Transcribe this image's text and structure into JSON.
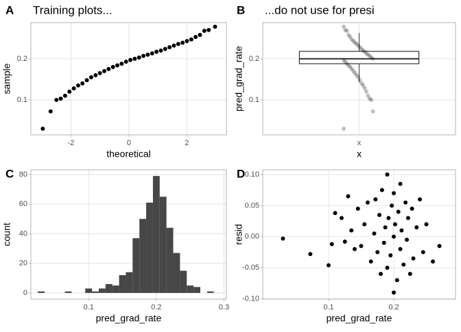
{
  "chart_data": [
    {
      "type": "scatter",
      "tag": "A",
      "title": "Training plots...",
      "xlabel": "theoretical",
      "ylabel": "sample",
      "color": "#000000",
      "x": [
        -2.97,
        -2.7,
        -2.5,
        -2.35,
        -2.2,
        -2.05,
        -1.9,
        -1.75,
        -1.6,
        -1.45,
        -1.3,
        -1.15,
        -1.0,
        -0.85,
        -0.7,
        -0.55,
        -0.4,
        -0.25,
        -0.1,
        0.05,
        0.2,
        0.35,
        0.5,
        0.65,
        0.8,
        0.95,
        1.1,
        1.25,
        1.4,
        1.55,
        1.7,
        1.85,
        2.0,
        2.15,
        2.3,
        2.45,
        2.6,
        2.75,
        2.97
      ],
      "values": [
        0.03,
        0.072,
        0.1,
        0.103,
        0.11,
        0.12,
        0.128,
        0.135,
        0.14,
        0.148,
        0.155,
        0.16,
        0.165,
        0.17,
        0.175,
        0.18,
        0.184,
        0.188,
        0.193,
        0.197,
        0.2,
        0.203,
        0.207,
        0.21,
        0.213,
        0.217,
        0.22,
        0.224,
        0.228,
        0.232,
        0.236,
        0.239,
        0.243,
        0.247,
        0.253,
        0.258,
        0.268,
        0.27,
        0.278
      ],
      "xlim": [
        -3.38,
        3.36
      ],
      "xticks": [
        -2,
        0,
        2
      ],
      "ylim": [
        0.015,
        0.288
      ],
      "yticks": [
        0.1,
        0.2
      ],
      "grid": true
    },
    {
      "type": "box",
      "tag": "B",
      "title": "...do not use for presi",
      "xlabel": "x",
      "ylabel": "pred_grad_rate",
      "color": "#000000",
      "point_opacity": 0.25,
      "categories": [
        "x"
      ],
      "q1": 0.188,
      "median": 0.2,
      "q3": 0.218,
      "whisker_low": 0.143,
      "whisker_high": 0.263,
      "values": [
        0.03,
        0.072,
        0.1,
        0.103,
        0.11,
        0.12,
        0.128,
        0.135,
        0.14,
        0.148,
        0.155,
        0.16,
        0.165,
        0.17,
        0.175,
        0.18,
        0.184,
        0.188,
        0.193,
        0.197,
        0.2,
        0.203,
        0.207,
        0.21,
        0.213,
        0.217,
        0.22,
        0.224,
        0.228,
        0.232,
        0.236,
        0.239,
        0.243,
        0.247,
        0.253,
        0.258,
        0.268,
        0.27,
        0.278
      ],
      "ylim": [
        0.015,
        0.288
      ],
      "yticks": [
        0.1,
        0.2
      ],
      "grid": true
    },
    {
      "type": "histogram",
      "tag": "C",
      "xlabel": "pred_grad_rate",
      "ylabel": "count",
      "color": "#474747",
      "bins": [
        0.025,
        0.035,
        0.045,
        0.055,
        0.065,
        0.075,
        0.085,
        0.095,
        0.105,
        0.115,
        0.125,
        0.135,
        0.145,
        0.155,
        0.165,
        0.175,
        0.185,
        0.195,
        0.205,
        0.215,
        0.225,
        0.235,
        0.245,
        0.255,
        0.265,
        0.275,
        0.285
      ],
      "values": [
        1,
        0,
        0,
        0,
        1,
        0,
        0,
        3,
        1,
        3,
        6,
        5,
        12,
        14,
        37,
        50,
        61,
        79,
        65,
        44,
        27,
        15,
        5,
        4,
        0,
        1
      ],
      "xlim": [
        0.0147,
        0.3035
      ],
      "xticks": [
        0.1,
        0.2,
        0.3
      ],
      "ylim": [
        -4.2,
        83.2
      ],
      "yticks": [
        0,
        20,
        40,
        60,
        80
      ],
      "grid": true
    },
    {
      "type": "scatter",
      "tag": "D",
      "xlabel": "pred_grad_rate",
      "ylabel": "resid",
      "color": "#000000",
      "x": [
        0.03,
        0.072,
        0.1,
        0.105,
        0.11,
        0.12,
        0.125,
        0.13,
        0.135,
        0.14,
        0.145,
        0.15,
        0.155,
        0.16,
        0.165,
        0.17,
        0.172,
        0.175,
        0.178,
        0.18,
        0.182,
        0.185,
        0.187,
        0.19,
        0.19,
        0.192,
        0.195,
        0.197,
        0.2,
        0.2,
        0.2,
        0.202,
        0.205,
        0.207,
        0.21,
        0.21,
        0.212,
        0.215,
        0.218,
        0.22,
        0.222,
        0.225,
        0.228,
        0.23,
        0.235,
        0.24,
        0.245,
        0.25,
        0.26,
        0.27
      ],
      "values": [
        -0.003,
        -0.028,
        -0.046,
        -0.012,
        0.038,
        0.03,
        -0.008,
        0.065,
        0.01,
        -0.02,
        0.045,
        -0.015,
        0.02,
        0.055,
        -0.04,
        0.005,
        0.06,
        -0.025,
        0.035,
        -0.06,
        0.075,
        -0.01,
        0.015,
        0.1,
        -0.05,
        0.03,
        -0.03,
        0.05,
        0.0,
        -0.09,
        0.07,
        0.02,
        -0.07,
        0.04,
        -0.02,
        0.085,
        0.01,
        -0.045,
        0.055,
        -0.005,
        0.03,
        -0.06,
        0.045,
        -0.035,
        0.015,
        0.06,
        -0.025,
        0.02,
        -0.04,
        -0.015
      ],
      "xlim": [
        -0.001,
        0.2947
      ],
      "xticks": [
        0.1,
        0.2
      ],
      "ylim": [
        -0.1006,
        0.1077
      ],
      "yticks": [
        {
          "value": 0.1,
          "label": "0.10"
        },
        {
          "value": 0.05,
          "label": "0.05"
        },
        {
          "value": 0,
          "label": "0.00"
        },
        {
          "value": -0.05,
          "label": "-0.05"
        },
        {
          "value": -0.1,
          "label": "-0.10"
        }
      ],
      "grid": true
    }
  ]
}
